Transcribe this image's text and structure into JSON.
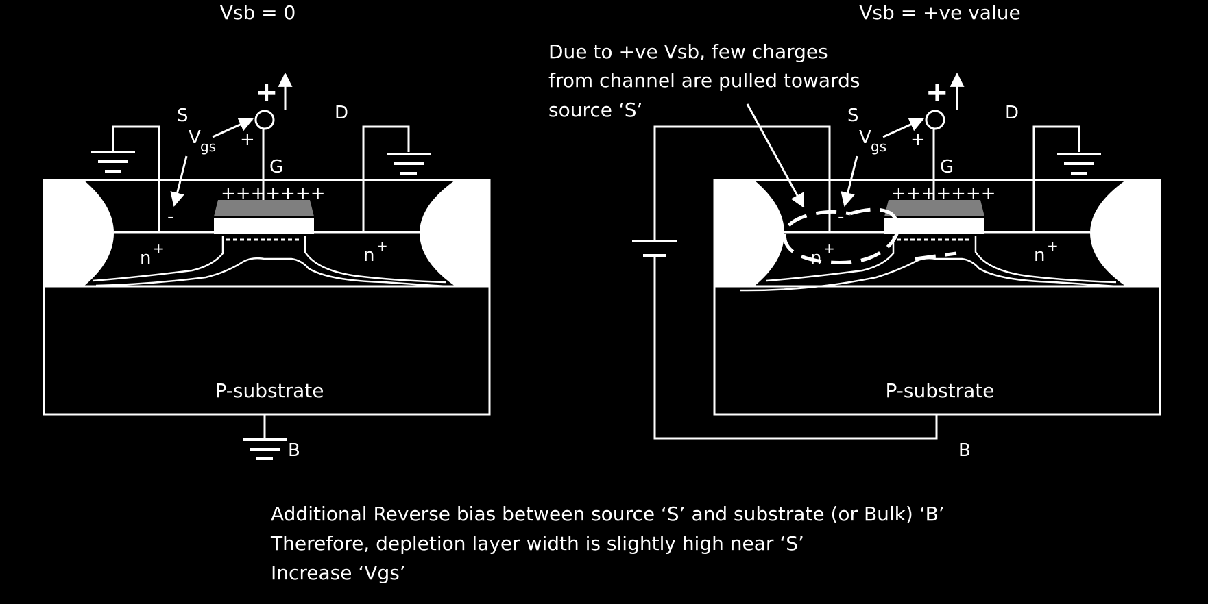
{
  "left_panel": {
    "title": "Vsb = 0",
    "source_label": "S",
    "drain_label": "D",
    "gate_label": "G",
    "bulk_label": "B",
    "vgs_label": "V",
    "vgs_sub": "gs",
    "gate_plus": "+",
    "vgs_plus": "+",
    "vgs_minus": "-",
    "gate_charges": "+++++++",
    "n_left": "n",
    "n_right": "n",
    "n_sup": "+",
    "substrate_label": "P-substrate"
  },
  "right_panel": {
    "title": "Vsb = +ve value",
    "annotation_lines": [
      "Due to +ve Vsb, few charges",
      "from channel are pulled towards",
      "source ‘S’"
    ],
    "source_label": "S",
    "drain_label": "D",
    "gate_label": "G",
    "bulk_label": "B",
    "vgs_label": "V",
    "vgs_sub": "gs",
    "gate_plus": "+",
    "vgs_plus": "+",
    "vgs_minus": "-",
    "gate_charges": "+++++++",
    "n_left": "n",
    "n_right": "n",
    "n_sup": "+",
    "substrate_label": "P-substrate"
  },
  "footer_lines": [
    "Additional Reverse bias between source ‘S’ and substrate (or Bulk) ‘B’",
    "Therefore, depletion layer width is slightly high near ‘S’",
    "Increase ‘Vgs’"
  ],
  "colors": {
    "background": "#000000",
    "foreground": "#ffffff",
    "gate_oxide": "#7f7f7f"
  }
}
